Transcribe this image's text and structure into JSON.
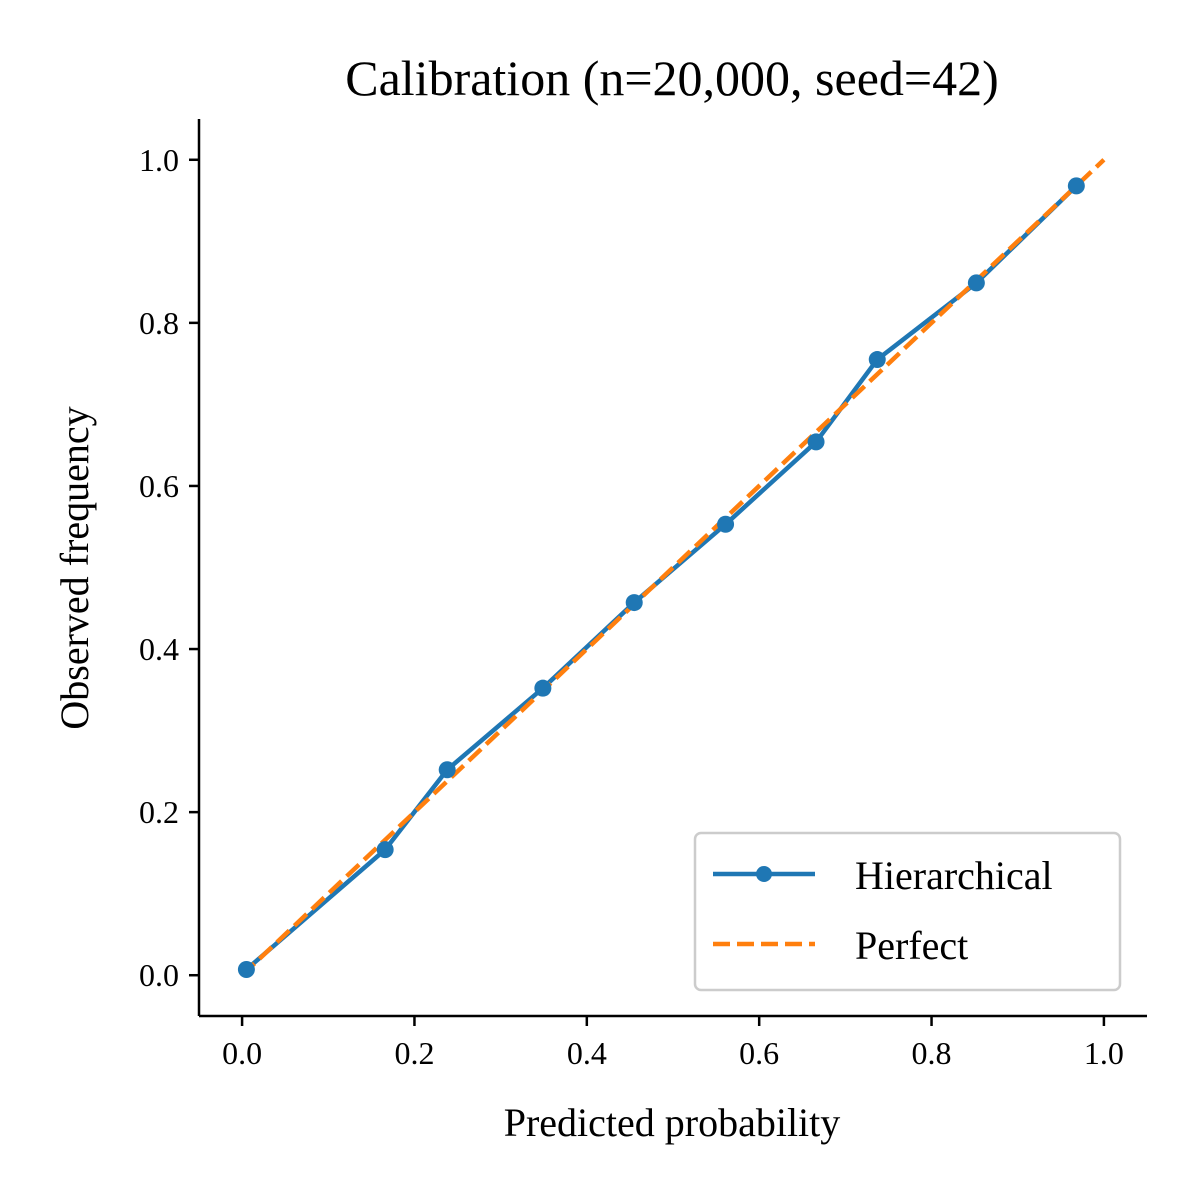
{
  "chart_data": {
    "type": "line",
    "title": "Calibration (n=20,000, seed=42)",
    "xlabel": "Predicted probability",
    "ylabel": "Observed frequency",
    "xlim": [
      -0.05,
      1.05
    ],
    "ylim": [
      -0.05,
      1.05
    ],
    "x_ticks": [
      0.0,
      0.2,
      0.4,
      0.6,
      0.8,
      1.0
    ],
    "y_ticks": [
      0.0,
      0.2,
      0.4,
      0.6,
      0.8,
      1.0
    ],
    "x_tick_labels": [
      "0.0",
      "0.2",
      "0.4",
      "0.6",
      "0.8",
      "1.0"
    ],
    "y_tick_labels": [
      "0.0",
      "0.2",
      "0.4",
      "0.6",
      "0.8",
      "1.0"
    ],
    "grid": false,
    "legend_position": "lower right",
    "series": [
      {
        "name": "Hierarchical",
        "style": "solid-with-markers",
        "color": "#1f77b4",
        "x": [
          0.005,
          0.166,
          0.238,
          0.349,
          0.455,
          0.561,
          0.666,
          0.737,
          0.852,
          0.968
        ],
        "y": [
          0.007,
          0.154,
          0.252,
          0.352,
          0.457,
          0.553,
          0.654,
          0.755,
          0.849,
          0.968
        ]
      },
      {
        "name": "Perfect",
        "style": "dashed",
        "color": "#ff7f0e",
        "x": [
          0.0,
          1.0
        ],
        "y": [
          0.0,
          1.0
        ]
      }
    ]
  }
}
